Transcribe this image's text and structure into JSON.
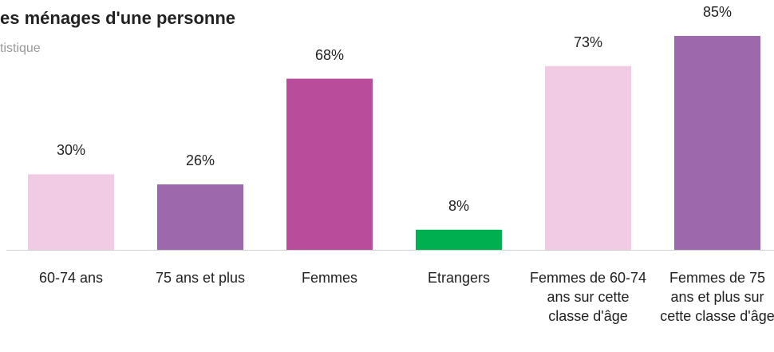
{
  "chart_data": {
    "type": "bar",
    "title": "es ménages d'une personne",
    "subtitle": "tistique",
    "categories": [
      "60-74 ans",
      "75 ans et plus",
      "Femmes",
      "Etrangers",
      "Femmes de 60-74 ans sur cette classe d'âge",
      "Femmes de 75 ans et plus sur cette classe d'âge"
    ],
    "values": [
      30,
      26,
      68,
      8,
      73,
      85
    ],
    "value_labels": [
      "30%",
      "26%",
      "68%",
      "8%",
      "73%",
      "85%"
    ],
    "colors": [
      "#f0cbe3",
      "#9e68ad",
      "#b94d9b",
      "#00b050",
      "#f0cbe3",
      "#9e68ad"
    ]
  }
}
